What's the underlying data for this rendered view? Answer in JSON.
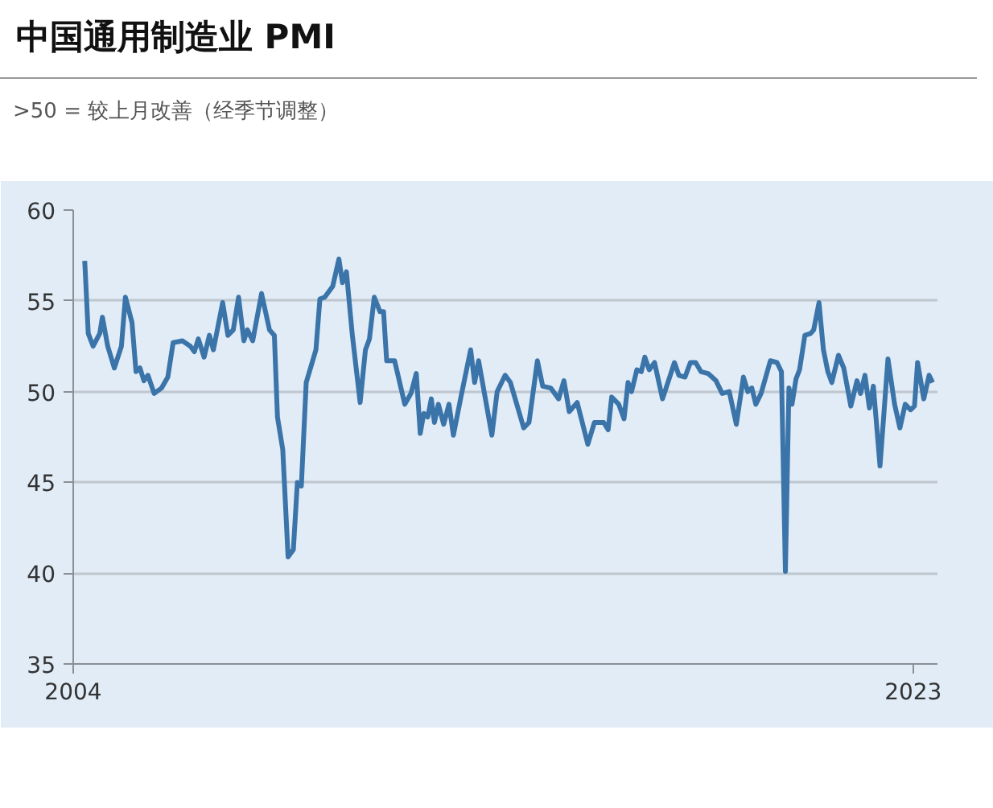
{
  "chart_data": {
    "type": "line",
    "title": "中国通用制造业 PMI",
    "subtitle": ">50 = 较上月改善（经季节调整）",
    "xlim": [
      2004,
      2023.55
    ],
    "xticks": [
      2004,
      2023
    ],
    "ylim": [
      35,
      60
    ],
    "yticks": [
      35,
      40,
      45,
      50,
      55,
      60
    ],
    "grid": "y",
    "marker": "none",
    "line_style": "solid",
    "series": [
      {
        "color": "#3b74a9",
        "x": [
          2004.26,
          2004.34,
          2004.45,
          2004.6,
          2004.66,
          2004.78,
          2004.93,
          2005.09,
          2005.18,
          2005.33,
          2005.42,
          2005.51,
          2005.6,
          2005.69,
          2005.83,
          2006.0,
          2006.14,
          2006.26,
          2006.47,
          2006.65,
          2006.74,
          2006.83,
          2006.96,
          2007.08,
          2007.17,
          2007.38,
          2007.5,
          2007.62,
          2007.74,
          2007.86,
          2007.94,
          2008.06,
          2008.26,
          2008.44,
          2008.55,
          2008.62,
          2008.74,
          2008.86,
          2008.98,
          2009.07,
          2009.16,
          2009.27,
          2009.49,
          2009.58,
          2009.69,
          2009.87,
          2010.01,
          2010.09,
          2010.18,
          2010.31,
          2010.49,
          2010.61,
          2010.7,
          2010.81,
          2010.94,
          2011.02,
          2011.09,
          2011.27,
          2011.5,
          2011.64,
          2011.76,
          2011.85,
          2011.93,
          2012.02,
          2012.1,
          2012.17,
          2012.26,
          2012.38,
          2012.5,
          2012.6,
          2012.77,
          2012.99,
          2013.08,
          2013.17,
          2013.47,
          2013.59,
          2013.77,
          2013.89,
          2014.19,
          2014.31,
          2014.5,
          2014.62,
          2014.8,
          2014.98,
          2015.1,
          2015.22,
          2015.4,
          2015.64,
          2015.79,
          2016.0,
          2016.1,
          2016.18,
          2016.34,
          2016.46,
          2016.55,
          2016.63,
          2016.75,
          2016.85,
          2016.93,
          2017.03,
          2017.15,
          2017.33,
          2017.6,
          2017.7,
          2017.84,
          2017.96,
          2018.08,
          2018.2,
          2018.36,
          2018.54,
          2018.68,
          2018.84,
          2019.0,
          2019.16,
          2019.26,
          2019.35,
          2019.44,
          2019.56,
          2019.77,
          2019.92,
          2020.02,
          2020.11,
          2020.19,
          2020.26,
          2020.35,
          2020.43,
          2020.55,
          2020.68,
          2020.75,
          2020.87,
          2020.97,
          2021.07,
          2021.16,
          2021.31,
          2021.43,
          2021.59,
          2021.73,
          2021.81,
          2021.91,
          2022.01,
          2022.1,
          2022.25,
          2022.43,
          2022.58,
          2022.7,
          2022.82,
          2022.94,
          2023.03,
          2023.1,
          2023.24,
          2023.36,
          2023.44
        ],
        "values": [
          57.2,
          53.2,
          52.5,
          53.2,
          54.1,
          52.5,
          51.3,
          52.5,
          55.2,
          53.8,
          51.1,
          51.3,
          50.6,
          50.9,
          49.9,
          50.2,
          50.8,
          52.7,
          52.8,
          52.5,
          52.2,
          52.9,
          51.9,
          53.1,
          52.3,
          54.9,
          53.1,
          53.4,
          55.2,
          52.8,
          53.4,
          52.8,
          55.4,
          53.4,
          53.1,
          48.6,
          46.8,
          40.9,
          41.3,
          45.0,
          44.8,
          50.5,
          52.3,
          55.1,
          55.2,
          55.8,
          57.3,
          56.0,
          56.6,
          53.2,
          49.4,
          52.3,
          52.9,
          55.2,
          54.4,
          54.4,
          51.7,
          51.7,
          49.3,
          49.9,
          51.0,
          47.7,
          48.8,
          48.6,
          49.6,
          48.3,
          49.3,
          48.2,
          49.3,
          47.6,
          49.7,
          52.3,
          50.5,
          51.7,
          47.6,
          50.0,
          50.9,
          50.5,
          48.0,
          48.3,
          51.7,
          50.3,
          50.2,
          49.6,
          50.6,
          48.9,
          49.4,
          47.1,
          48.3,
          48.3,
          47.9,
          49.7,
          49.3,
          48.5,
          50.5,
          50.0,
          51.2,
          51.1,
          51.9,
          51.2,
          51.6,
          49.6,
          51.6,
          50.9,
          50.8,
          51.6,
          51.6,
          51.1,
          51.0,
          50.6,
          49.9,
          50.0,
          48.2,
          50.8,
          50.0,
          50.2,
          49.3,
          49.9,
          51.7,
          51.6,
          51.1,
          40.1,
          50.2,
          49.3,
          50.7,
          51.2,
          53.1,
          53.2,
          53.4,
          54.9,
          52.3,
          51.1,
          50.5,
          52.0,
          51.3,
          49.2,
          50.6,
          49.9,
          50.9,
          49.1,
          50.3,
          45.9,
          51.8,
          49.3,
          48.0,
          49.3,
          49.0,
          49.2,
          51.6,
          49.6,
          50.9,
          50.5
        ]
      }
    ]
  }
}
